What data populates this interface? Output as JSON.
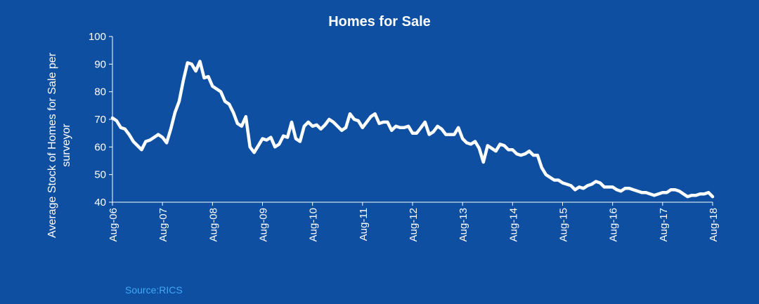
{
  "chart_data": {
    "type": "line",
    "title": "Homes for Sale",
    "ylabel_lines": [
      "Average Stock of Homes for Sale per",
      "surveyor"
    ],
    "xlabel": "",
    "ylim": [
      40,
      100
    ],
    "yticks": [
      40,
      50,
      60,
      70,
      80,
      90,
      100
    ],
    "xlim": [
      "2006-08",
      "2018-08"
    ],
    "xticks": [
      "Aug-06",
      "Aug-07",
      "Aug-08",
      "Aug-09",
      "Aug-10",
      "Aug-11",
      "Aug-12",
      "Aug-13",
      "Aug-14",
      "Aug-15",
      "Aug-16",
      "Aug-17",
      "Aug-18"
    ],
    "grid": false,
    "legend": "none",
    "series": [
      {
        "color": "#ffffff",
        "x": [
          "2006-08",
          "2006-09",
          "2006-10",
          "2006-11",
          "2006-12",
          "2007-01",
          "2007-02",
          "2007-03",
          "2007-04",
          "2007-05",
          "2007-06",
          "2007-07",
          "2007-08",
          "2007-09",
          "2007-10",
          "2007-11",
          "2007-12",
          "2008-01",
          "2008-02",
          "2008-03",
          "2008-04",
          "2008-05",
          "2008-06",
          "2008-07",
          "2008-08",
          "2008-09",
          "2008-10",
          "2008-11",
          "2008-12",
          "2009-01",
          "2009-02",
          "2009-03",
          "2009-04",
          "2009-05",
          "2009-06",
          "2009-07",
          "2009-08",
          "2009-09",
          "2009-10",
          "2009-11",
          "2009-12",
          "2010-01",
          "2010-02",
          "2010-03",
          "2010-04",
          "2010-05",
          "2010-06",
          "2010-07",
          "2010-08",
          "2010-09",
          "2010-10",
          "2010-11",
          "2010-12",
          "2011-01",
          "2011-02",
          "2011-03",
          "2011-04",
          "2011-05",
          "2011-06",
          "2011-07",
          "2011-08",
          "2011-09",
          "2011-10",
          "2011-11",
          "2011-12",
          "2012-01",
          "2012-02",
          "2012-03",
          "2012-04",
          "2012-05",
          "2012-06",
          "2012-07",
          "2012-08",
          "2012-09",
          "2012-10",
          "2012-11",
          "2012-12",
          "2013-01",
          "2013-02",
          "2013-03",
          "2013-04",
          "2013-05",
          "2013-06",
          "2013-07",
          "2013-08",
          "2013-09",
          "2013-10",
          "2013-11",
          "2013-12",
          "2014-01",
          "2014-02",
          "2014-03",
          "2014-04",
          "2014-05",
          "2014-06",
          "2014-07",
          "2014-08",
          "2014-09",
          "2014-10",
          "2014-11",
          "2014-12",
          "2015-01",
          "2015-02",
          "2015-03",
          "2015-04",
          "2015-05",
          "2015-06",
          "2015-07",
          "2015-08",
          "2015-09",
          "2015-10",
          "2015-11",
          "2015-12",
          "2016-01",
          "2016-02",
          "2016-03",
          "2016-04",
          "2016-05",
          "2016-06",
          "2016-07",
          "2016-08",
          "2016-09",
          "2016-10",
          "2016-11",
          "2016-12",
          "2017-01",
          "2017-02",
          "2017-03",
          "2017-04",
          "2017-05",
          "2017-06",
          "2017-07",
          "2017-08",
          "2017-09",
          "2017-10",
          "2017-11",
          "2017-12",
          "2018-01",
          "2018-02",
          "2018-03",
          "2018-04",
          "2018-05",
          "2018-06",
          "2018-07",
          "2018-08"
        ],
        "values": [
          70.5,
          69.5,
          67,
          66.5,
          64.5,
          62,
          60.5,
          59,
          62,
          62.5,
          63.5,
          64.5,
          63.5,
          61.5,
          66.5,
          72.5,
          76.5,
          84,
          90.5,
          90,
          87.5,
          91,
          85,
          85.5,
          82,
          81,
          80,
          76.5,
          75.5,
          72.5,
          68.5,
          67.5,
          71,
          60,
          58,
          60.5,
          63,
          62.5,
          63.5,
          60,
          61,
          64,
          63.5,
          69,
          63,
          62,
          67.5,
          69,
          67.5,
          68,
          66.5,
          68,
          70,
          69,
          67.5,
          66,
          67,
          72,
          70,
          69.5,
          67,
          69,
          71,
          72,
          68.5,
          69,
          69,
          66,
          67.5,
          67,
          67,
          67.5,
          65,
          65,
          67,
          69,
          64.5,
          65.5,
          67.5,
          66.5,
          64.5,
          64.5,
          64.5,
          67,
          63,
          61.5,
          61,
          62,
          59.5,
          54.5,
          60.5,
          59.5,
          58.5,
          61,
          60.5,
          59,
          59,
          57.5,
          57,
          57.5,
          58.5,
          57,
          57,
          52.5,
          50,
          49,
          48,
          48,
          47,
          46.5,
          46,
          44.5,
          45.5,
          45,
          46,
          46.5,
          47.5,
          47,
          45.5,
          45.5,
          45.5,
          44.5,
          44,
          45,
          45,
          44.5,
          44,
          43.5,
          43.5,
          43,
          42.5,
          43,
          43.5,
          43.5,
          44.5,
          44.5,
          44,
          43,
          42,
          42.5,
          42.5,
          43,
          43,
          43.5,
          42
        ]
      }
    ]
  },
  "source": "Source:RICS"
}
